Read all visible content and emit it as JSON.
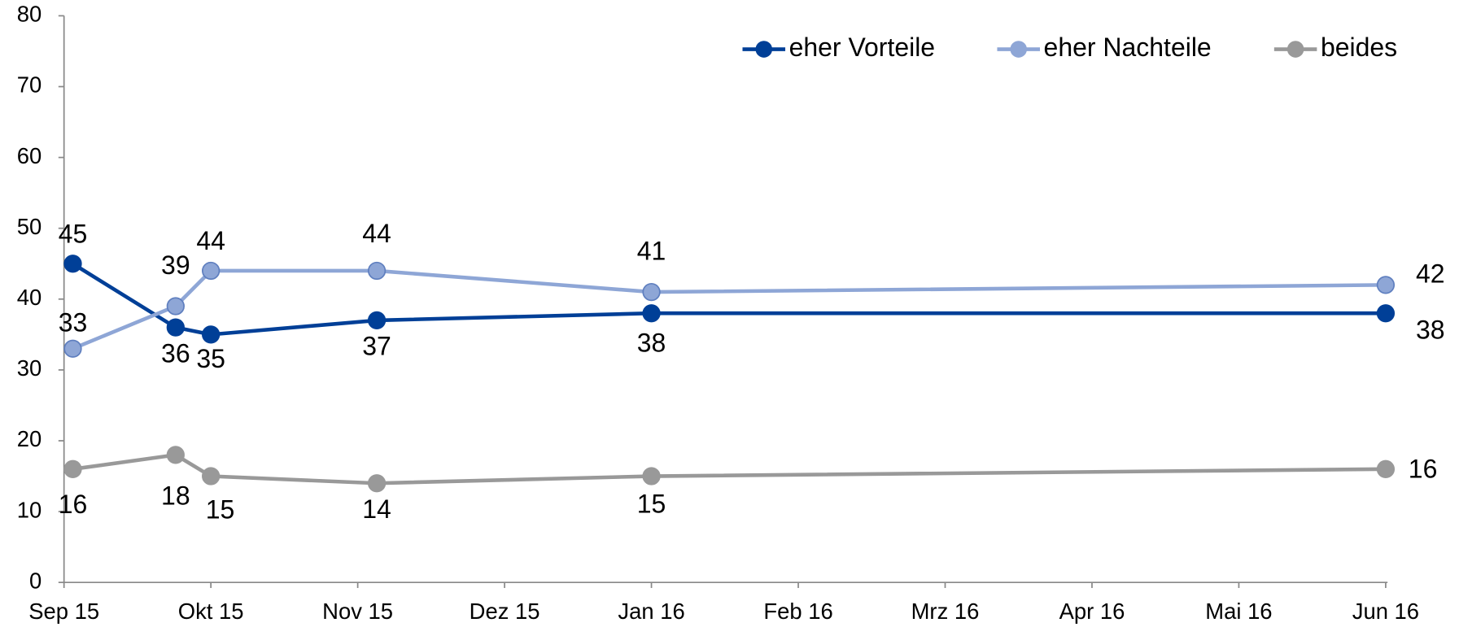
{
  "chart_data": {
    "type": "line",
    "x": [
      0.06,
      0.76,
      1,
      2.13,
      4,
      9
    ],
    "xlim": [
      0,
      9
    ],
    "xticks": [
      {
        "value": 0,
        "label": "Sep 15"
      },
      {
        "value": 1,
        "label": "Okt 15"
      },
      {
        "value": 2,
        "label": "Nov 15"
      },
      {
        "value": 3,
        "label": "Dez 15"
      },
      {
        "value": 4,
        "label": "Jan 16"
      },
      {
        "value": 5,
        "label": "Feb 16"
      },
      {
        "value": 6,
        "label": "Mrz 16"
      },
      {
        "value": 7,
        "label": "Apr 16"
      },
      {
        "value": 8,
        "label": "Mai 16"
      },
      {
        "value": 9,
        "label": "Jun 16"
      }
    ],
    "ylim": [
      0,
      80
    ],
    "yticks": [
      0,
      10,
      20,
      30,
      40,
      50,
      60,
      70,
      80
    ],
    "grid": false,
    "legend": "top-right",
    "series": [
      {
        "name": "eher Vorteile",
        "color": "#003f97",
        "values": [
          45,
          36,
          35,
          37,
          38,
          38
        ]
      },
      {
        "name": "eher Nachteile",
        "color": "#8ea6d6",
        "values": [
          33,
          39,
          44,
          44,
          41,
          42
        ]
      },
      {
        "name": "beides",
        "color": "#999999",
        "values": [
          16,
          18,
          15,
          14,
          15,
          16
        ]
      }
    ]
  }
}
